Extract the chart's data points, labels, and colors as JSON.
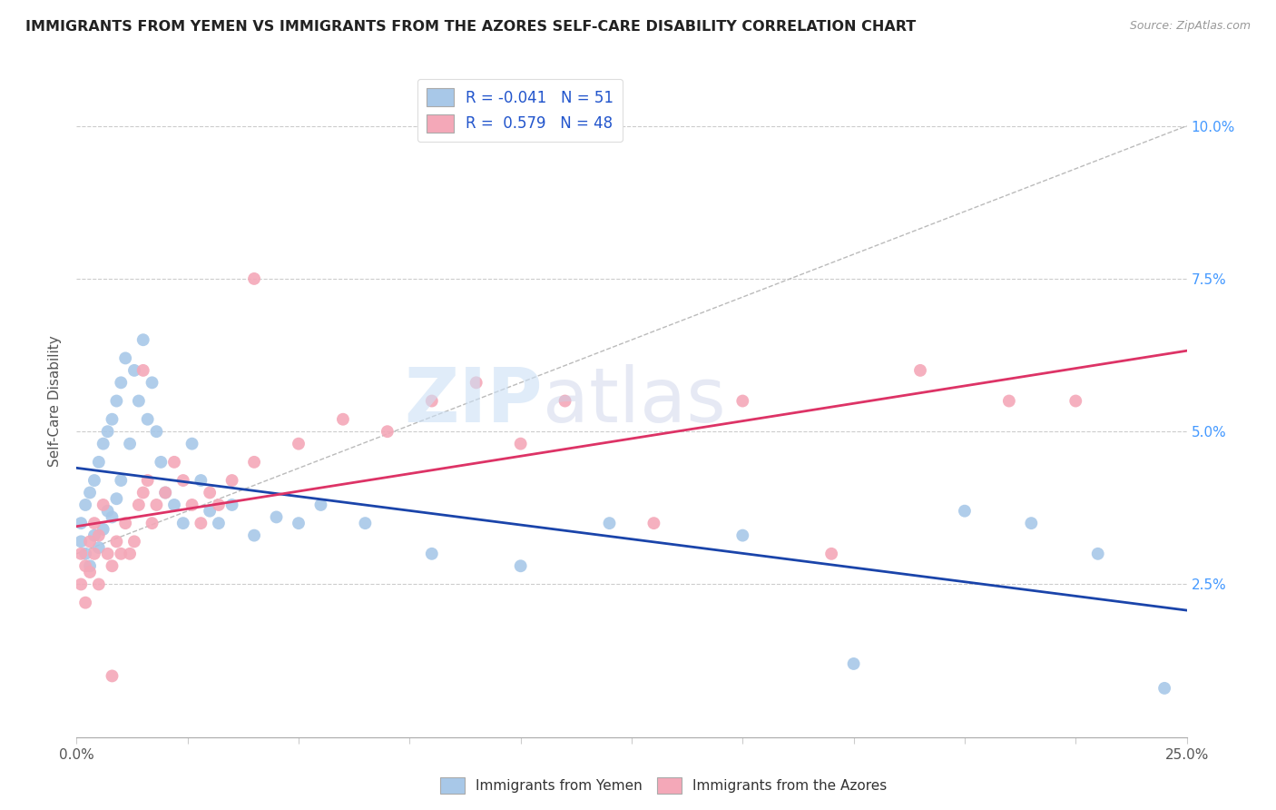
{
  "title": "IMMIGRANTS FROM YEMEN VS IMMIGRANTS FROM THE AZORES SELF-CARE DISABILITY CORRELATION CHART",
  "source": "Source: ZipAtlas.com",
  "ylabel": "Self-Care Disability",
  "xlim": [
    0.0,
    0.25
  ],
  "ylim": [
    0.0,
    0.11
  ],
  "y_ticks": [
    0.025,
    0.05,
    0.075,
    0.1
  ],
  "y_tick_labels": [
    "2.5%",
    "5.0%",
    "7.5%",
    "10.0%"
  ],
  "R_yemen": -0.041,
  "N_yemen": 51,
  "R_azores": 0.579,
  "N_azores": 48,
  "color_yemen": "#a8c8e8",
  "color_azores": "#f4a8b8",
  "line_color_yemen": "#1a44aa",
  "line_color_azores": "#dd3366",
  "scatter_size": 100,
  "yemen_x": [
    0.001,
    0.001,
    0.002,
    0.002,
    0.003,
    0.003,
    0.004,
    0.004,
    0.005,
    0.005,
    0.006,
    0.006,
    0.007,
    0.007,
    0.008,
    0.008,
    0.009,
    0.009,
    0.01,
    0.01,
    0.011,
    0.012,
    0.013,
    0.014,
    0.015,
    0.016,
    0.017,
    0.018,
    0.019,
    0.02,
    0.022,
    0.024,
    0.026,
    0.028,
    0.03,
    0.032,
    0.035,
    0.04,
    0.045,
    0.05,
    0.055,
    0.065,
    0.08,
    0.1,
    0.12,
    0.15,
    0.175,
    0.2,
    0.215,
    0.23,
    0.245
  ],
  "yemen_y": [
    0.035,
    0.032,
    0.038,
    0.03,
    0.04,
    0.028,
    0.042,
    0.033,
    0.045,
    0.031,
    0.048,
    0.034,
    0.05,
    0.037,
    0.052,
    0.036,
    0.055,
    0.039,
    0.058,
    0.042,
    0.062,
    0.048,
    0.06,
    0.055,
    0.065,
    0.052,
    0.058,
    0.05,
    0.045,
    0.04,
    0.038,
    0.035,
    0.048,
    0.042,
    0.037,
    0.035,
    0.038,
    0.033,
    0.036,
    0.035,
    0.038,
    0.035,
    0.03,
    0.028,
    0.035,
    0.033,
    0.012,
    0.037,
    0.035,
    0.03,
    0.008
  ],
  "azores_x": [
    0.001,
    0.001,
    0.002,
    0.002,
    0.003,
    0.003,
    0.004,
    0.004,
    0.005,
    0.005,
    0.006,
    0.007,
    0.008,
    0.009,
    0.01,
    0.011,
    0.012,
    0.013,
    0.014,
    0.015,
    0.016,
    0.017,
    0.018,
    0.02,
    0.022,
    0.024,
    0.026,
    0.028,
    0.03,
    0.032,
    0.035,
    0.04,
    0.05,
    0.06,
    0.07,
    0.08,
    0.09,
    0.1,
    0.11,
    0.13,
    0.15,
    0.17,
    0.19,
    0.21,
    0.225,
    0.04,
    0.008,
    0.015
  ],
  "azores_y": [
    0.03,
    0.025,
    0.028,
    0.022,
    0.032,
    0.027,
    0.035,
    0.03,
    0.033,
    0.025,
    0.038,
    0.03,
    0.028,
    0.032,
    0.03,
    0.035,
    0.03,
    0.032,
    0.038,
    0.04,
    0.042,
    0.035,
    0.038,
    0.04,
    0.045,
    0.042,
    0.038,
    0.035,
    0.04,
    0.038,
    0.042,
    0.045,
    0.048,
    0.052,
    0.05,
    0.055,
    0.058,
    0.048,
    0.055,
    0.035,
    0.055,
    0.03,
    0.06,
    0.055,
    0.055,
    0.075,
    0.01,
    0.06
  ]
}
